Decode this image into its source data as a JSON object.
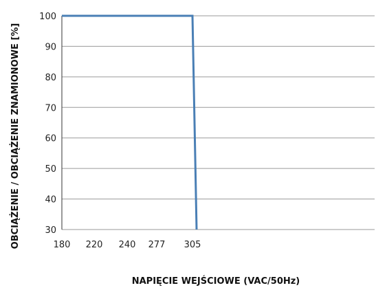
{
  "chart_data": {
    "type": "line",
    "title": "",
    "xlabel": "NAPIĘCIE WEJŚCIOWE  (VAC/50Hz)",
    "ylabel": "OBCIĄŻENIE / OBCIĄŻENIE ZNAMIONOWE [%]",
    "x_ticks": [
      "180",
      "220",
      "240",
      "277",
      "305"
    ],
    "y_ticks": [
      "100",
      "90",
      "80",
      "70",
      "60",
      "50",
      "40",
      "30"
    ],
    "ylim": [
      30,
      100
    ],
    "grid": true,
    "colors": {
      "line": "#4a7fb5",
      "grid": "#9a9a9a",
      "axis": "#333333"
    },
    "series": [
      {
        "x": [
          "180",
          "305",
          "305"
        ],
        "y": [
          100,
          100,
          30
        ]
      }
    ]
  }
}
